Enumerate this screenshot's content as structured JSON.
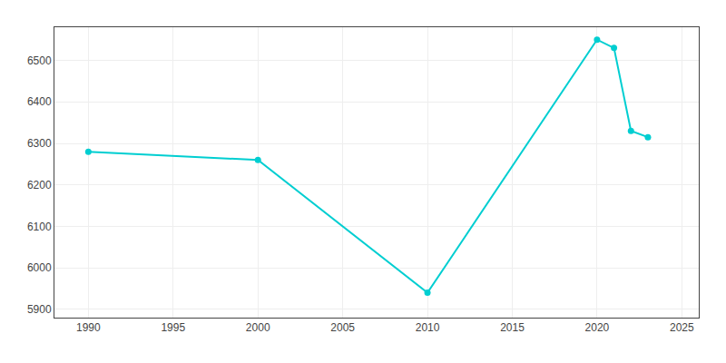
{
  "chart_data": {
    "type": "line",
    "x": [
      1990,
      2000,
      2010,
      2020,
      2021,
      2022,
      2023
    ],
    "values": [
      6280,
      6260,
      5940,
      6550,
      6530,
      6330,
      6315
    ],
    "color": "#00CED1",
    "marker": "circle",
    "line_style": "solid",
    "xlim": [
      1988,
      2026
    ],
    "ylim": [
      5880,
      6580
    ],
    "xticks": [
      1990,
      1995,
      2000,
      2005,
      2010,
      2015,
      2020,
      2025
    ],
    "yticks": [
      5900,
      6000,
      6100,
      6200,
      6300,
      6400,
      6500
    ],
    "grid": true
  }
}
